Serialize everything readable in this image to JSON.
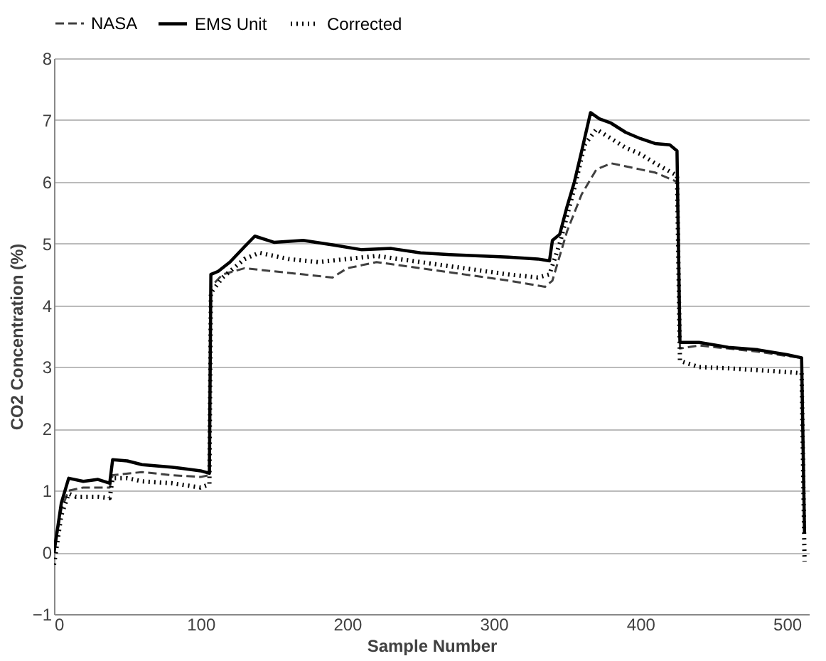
{
  "chart_data": {
    "type": "line",
    "xlabel": "Sample Number",
    "ylabel": "CO2 Concentration (%)",
    "xlim": [
      0,
      515
    ],
    "xticks": [
      0,
      100,
      200,
      300,
      400,
      500
    ],
    "ylim": [
      -1,
      8
    ],
    "yticks": [
      -1,
      0,
      1,
      2,
      3,
      4,
      5,
      6,
      7,
      8
    ],
    "grid": "y",
    "legend": "top",
    "marker": "none",
    "series": [
      {
        "name": "NASA",
        "color": "#404040",
        "line_style": "dashed",
        "x": [
          0,
          5,
          10,
          20,
          38,
          40,
          60,
          80,
          100,
          106,
          107,
          115,
          130,
          150,
          170,
          190,
          200,
          220,
          250,
          280,
          310,
          335,
          340,
          350,
          360,
          370,
          380,
          390,
          400,
          410,
          425,
          427,
          440,
          460,
          480,
          500,
          510,
          512
        ],
        "values": [
          0,
          0.7,
          1.0,
          1.05,
          1.05,
          1.25,
          1.3,
          1.25,
          1.22,
          1.25,
          4.3,
          4.5,
          4.6,
          4.55,
          4.5,
          4.45,
          4.6,
          4.7,
          4.6,
          4.5,
          4.4,
          4.3,
          4.4,
          5.2,
          5.8,
          6.2,
          6.3,
          6.25,
          6.2,
          6.15,
          6.0,
          3.3,
          3.35,
          3.3,
          3.25,
          3.18,
          3.15,
          0.3
        ]
      },
      {
        "name": "EMS Unit",
        "color": "#000000",
        "line_style": "solid",
        "x": [
          0,
          5,
          10,
          20,
          30,
          38,
          40,
          50,
          60,
          80,
          100,
          106,
          107,
          112,
          120,
          130,
          137,
          150,
          170,
          190,
          210,
          230,
          250,
          270,
          290,
          310,
          330,
          338,
          340,
          345,
          350,
          355,
          360,
          366,
          372,
          380,
          390,
          400,
          410,
          420,
          425,
          427,
          440,
          460,
          480,
          500,
          510,
          512
        ],
        "values": [
          0,
          0.8,
          1.2,
          1.15,
          1.18,
          1.12,
          1.5,
          1.48,
          1.42,
          1.38,
          1.32,
          1.28,
          4.5,
          4.55,
          4.7,
          4.95,
          5.12,
          5.02,
          5.05,
          4.98,
          4.9,
          4.92,
          4.85,
          4.82,
          4.8,
          4.78,
          4.75,
          4.72,
          5.05,
          5.15,
          5.6,
          6.0,
          6.5,
          7.12,
          7.02,
          6.95,
          6.8,
          6.7,
          6.62,
          6.6,
          6.5,
          3.4,
          3.4,
          3.32,
          3.28,
          3.2,
          3.15,
          0.3
        ]
      },
      {
        "name": "Corrected",
        "color": "#000000",
        "line_style": "dotted",
        "x": [
          0,
          5,
          10,
          15,
          30,
          38,
          40,
          50,
          60,
          80,
          100,
          106,
          107,
          115,
          130,
          140,
          160,
          180,
          200,
          220,
          250,
          280,
          310,
          330,
          338,
          345,
          355,
          362,
          370,
          380,
          390,
          400,
          410,
          425,
          427,
          440,
          460,
          480,
          500,
          510,
          512
        ],
        "values": [
          -0.2,
          0.6,
          0.95,
          0.9,
          0.9,
          0.88,
          1.2,
          1.2,
          1.15,
          1.12,
          1.05,
          1.1,
          4.2,
          4.45,
          4.75,
          4.85,
          4.75,
          4.7,
          4.75,
          4.8,
          4.7,
          4.6,
          4.5,
          4.45,
          4.5,
          5.0,
          5.9,
          6.6,
          6.85,
          6.7,
          6.55,
          6.45,
          6.3,
          6.1,
          3.1,
          3.0,
          2.98,
          2.95,
          2.92,
          2.9,
          -0.15
        ]
      }
    ]
  }
}
